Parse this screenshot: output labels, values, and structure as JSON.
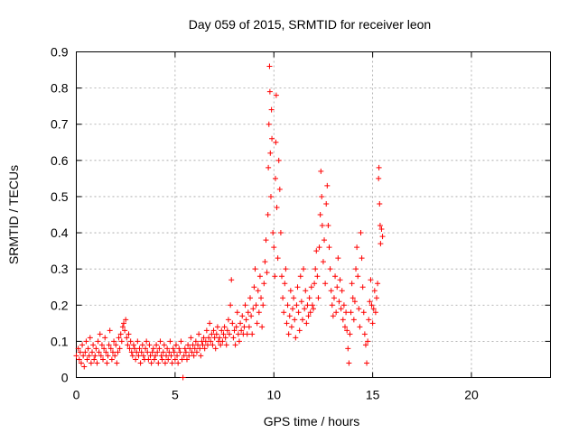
{
  "chart_data": {
    "type": "scatter",
    "title": "Day 059 of 2015, SRMTID for receiver leon",
    "xlabel": "GPS time / hours",
    "ylabel": "SRMTID / TECUs",
    "xlim": [
      0,
      24
    ],
    "ylim": [
      0,
      0.9
    ],
    "x_ticks": [
      0,
      5,
      10,
      15,
      20
    ],
    "x_tick_labels": [
      "0",
      "5",
      "10",
      "15",
      "20"
    ],
    "y_ticks": [
      0,
      0.1,
      0.2,
      0.3,
      0.4,
      0.5,
      0.6,
      0.7,
      0.8,
      0.9
    ],
    "y_tick_labels": [
      "0",
      "0.1",
      "0.2",
      "0.3",
      "0.4",
      "0.5",
      "0.6",
      "0.7",
      "0.8",
      "0.9"
    ],
    "grid": true,
    "marker": "+",
    "series": [
      {
        "name": "SRMTID",
        "color": "#ff0000",
        "points": [
          [
            0.0,
            0.06
          ],
          [
            0.1,
            0.08
          ],
          [
            0.15,
            0.05
          ],
          [
            0.2,
            0.07
          ],
          [
            0.25,
            0.04
          ],
          [
            0.3,
            0.09
          ],
          [
            0.35,
            0.06
          ],
          [
            0.4,
            0.03
          ],
          [
            0.45,
            0.07
          ],
          [
            0.5,
            0.1
          ],
          [
            0.55,
            0.05
          ],
          [
            0.6,
            0.08
          ],
          [
            0.65,
            0.06
          ],
          [
            0.7,
            0.11
          ],
          [
            0.75,
            0.04
          ],
          [
            0.8,
            0.07
          ],
          [
            0.85,
            0.09
          ],
          [
            0.9,
            0.05
          ],
          [
            0.95,
            0.06
          ],
          [
            1.0,
            0.08
          ],
          [
            1.05,
            0.04
          ],
          [
            1.1,
            0.1
          ],
          [
            1.15,
            0.07
          ],
          [
            1.2,
            0.12
          ],
          [
            1.25,
            0.06
          ],
          [
            1.3,
            0.09
          ],
          [
            1.35,
            0.05
          ],
          [
            1.4,
            0.08
          ],
          [
            1.45,
            0.11
          ],
          [
            1.5,
            0.07
          ],
          [
            1.55,
            0.04
          ],
          [
            1.6,
            0.06
          ],
          [
            1.65,
            0.09
          ],
          [
            1.7,
            0.13
          ],
          [
            1.75,
            0.08
          ],
          [
            1.8,
            0.05
          ],
          [
            1.85,
            0.07
          ],
          [
            1.9,
            0.1
          ],
          [
            1.95,
            0.06
          ],
          [
            2.0,
            0.09
          ],
          [
            2.05,
            0.04
          ],
          [
            2.1,
            0.07
          ],
          [
            2.15,
            0.11
          ],
          [
            2.2,
            0.08
          ],
          [
            2.25,
            0.12
          ],
          [
            2.3,
            0.1
          ],
          [
            2.35,
            0.14
          ],
          [
            2.4,
            0.15
          ],
          [
            2.45,
            0.13
          ],
          [
            2.5,
            0.16
          ],
          [
            2.55,
            0.11
          ],
          [
            2.6,
            0.09
          ],
          [
            2.65,
            0.12
          ],
          [
            2.7,
            0.08
          ],
          [
            2.75,
            0.1
          ],
          [
            2.8,
            0.07
          ],
          [
            2.85,
            0.06
          ],
          [
            2.9,
            0.09
          ],
          [
            2.95,
            0.08
          ],
          [
            3.0,
            0.05
          ],
          [
            3.05,
            0.07
          ],
          [
            3.1,
            0.1
          ],
          [
            3.15,
            0.06
          ],
          [
            3.2,
            0.08
          ],
          [
            3.25,
            0.04
          ],
          [
            3.3,
            0.07
          ],
          [
            3.35,
            0.09
          ],
          [
            3.4,
            0.06
          ],
          [
            3.45,
            0.05
          ],
          [
            3.5,
            0.08
          ],
          [
            3.55,
            0.1
          ],
          [
            3.6,
            0.07
          ],
          [
            3.65,
            0.05
          ],
          [
            3.7,
            0.09
          ],
          [
            3.75,
            0.06
          ],
          [
            3.8,
            0.04
          ],
          [
            3.85,
            0.07
          ],
          [
            3.9,
            0.08
          ],
          [
            3.95,
            0.05
          ],
          [
            4.0,
            0.06
          ],
          [
            4.05,
            0.09
          ],
          [
            4.1,
            0.07
          ],
          [
            4.15,
            0.04
          ],
          [
            4.2,
            0.08
          ],
          [
            4.25,
            0.1
          ],
          [
            4.3,
            0.06
          ],
          [
            4.35,
            0.05
          ],
          [
            4.4,
            0.07
          ],
          [
            4.45,
            0.09
          ],
          [
            4.5,
            0.04
          ],
          [
            4.55,
            0.06
          ],
          [
            4.6,
            0.08
          ],
          [
            4.65,
            0.05
          ],
          [
            4.7,
            0.07
          ],
          [
            4.75,
            0.1
          ],
          [
            4.8,
            0.06
          ],
          [
            4.85,
            0.04
          ],
          [
            4.9,
            0.08
          ],
          [
            4.95,
            0.07
          ],
          [
            5.0,
            0.05
          ],
          [
            5.05,
            0.09
          ],
          [
            5.1,
            0.06
          ],
          [
            5.15,
            0.04
          ],
          [
            5.2,
            0.08
          ],
          [
            5.25,
            0.07
          ],
          [
            5.3,
            0.1
          ],
          [
            5.35,
            0.05
          ],
          [
            5.4,
            0.0
          ],
          [
            5.45,
            0.06
          ],
          [
            5.5,
            0.08
          ],
          [
            5.55,
            0.07
          ],
          [
            5.6,
            0.05
          ],
          [
            5.65,
            0.09
          ],
          [
            5.7,
            0.06
          ],
          [
            5.75,
            0.08
          ],
          [
            5.8,
            0.11
          ],
          [
            5.85,
            0.07
          ],
          [
            5.9,
            0.09
          ],
          [
            5.95,
            0.06
          ],
          [
            6.0,
            0.08
          ],
          [
            6.05,
            0.1
          ],
          [
            6.1,
            0.07
          ],
          [
            6.15,
            0.09
          ],
          [
            6.2,
            0.12
          ],
          [
            6.25,
            0.08
          ],
          [
            6.3,
            0.06
          ],
          [
            6.35,
            0.1
          ],
          [
            6.4,
            0.09
          ],
          [
            6.45,
            0.11
          ],
          [
            6.5,
            0.08
          ],
          [
            6.55,
            0.1
          ],
          [
            6.6,
            0.13
          ],
          [
            6.65,
            0.09
          ],
          [
            6.7,
            0.11
          ],
          [
            6.75,
            0.15
          ],
          [
            6.8,
            0.1
          ],
          [
            6.85,
            0.12
          ],
          [
            6.9,
            0.09
          ],
          [
            6.95,
            0.13
          ],
          [
            7.0,
            0.11
          ],
          [
            7.05,
            0.08
          ],
          [
            7.1,
            0.12
          ],
          [
            7.15,
            0.14
          ],
          [
            7.2,
            0.1
          ],
          [
            7.25,
            0.11
          ],
          [
            7.3,
            0.09
          ],
          [
            7.35,
            0.13
          ],
          [
            7.4,
            0.1
          ],
          [
            7.45,
            0.12
          ],
          [
            7.5,
            0.14
          ],
          [
            7.55,
            0.11
          ],
          [
            7.6,
            0.09
          ],
          [
            7.65,
            0.13
          ],
          [
            7.7,
            0.16
          ],
          [
            7.75,
            0.12
          ],
          [
            7.8,
            0.2
          ],
          [
            7.85,
            0.27
          ],
          [
            7.9,
            0.15
          ],
          [
            7.95,
            0.11
          ],
          [
            8.0,
            0.13
          ],
          [
            8.05,
            0.09
          ],
          [
            8.1,
            0.14
          ],
          [
            8.15,
            0.18
          ],
          [
            8.2,
            0.12
          ],
          [
            8.25,
            0.1
          ],
          [
            8.3,
            0.15
          ],
          [
            8.35,
            0.13
          ],
          [
            8.4,
            0.17
          ],
          [
            8.45,
            0.12
          ],
          [
            8.5,
            0.14
          ],
          [
            8.55,
            0.2
          ],
          [
            8.6,
            0.16
          ],
          [
            8.65,
            0.12
          ],
          [
            8.7,
            0.18
          ],
          [
            8.75,
            0.14
          ],
          [
            8.8,
            0.22
          ],
          [
            8.85,
            0.17
          ],
          [
            8.9,
            0.12
          ],
          [
            8.95,
            0.19
          ],
          [
            9.0,
            0.25
          ],
          [
            9.05,
            0.3
          ],
          [
            9.1,
            0.2
          ],
          [
            9.15,
            0.15
          ],
          [
            9.2,
            0.24
          ],
          [
            9.25,
            0.18
          ],
          [
            9.3,
            0.28
          ],
          [
            9.35,
            0.22
          ],
          [
            9.4,
            0.14
          ],
          [
            9.45,
            0.2
          ],
          [
            9.5,
            0.26
          ],
          [
            9.55,
            0.32
          ],
          [
            9.6,
            0.38
          ],
          [
            9.65,
            0.29
          ],
          [
            9.7,
            0.45
          ],
          [
            9.72,
            0.58
          ],
          [
            9.75,
            0.7
          ],
          [
            9.78,
            0.86
          ],
          [
            9.8,
            0.79
          ],
          [
            9.82,
            0.62
          ],
          [
            9.85,
            0.5
          ],
          [
            9.88,
            0.74
          ],
          [
            9.9,
            0.66
          ],
          [
            9.95,
            0.4
          ],
          [
            10.0,
            0.36
          ],
          [
            10.05,
            0.28
          ],
          [
            10.08,
            0.55
          ],
          [
            10.1,
            0.65
          ],
          [
            10.12,
            0.78
          ],
          [
            10.15,
            0.47
          ],
          [
            10.2,
            0.33
          ],
          [
            10.25,
            0.6
          ],
          [
            10.3,
            0.52
          ],
          [
            10.35,
            0.4
          ],
          [
            10.4,
            0.28
          ],
          [
            10.45,
            0.22
          ],
          [
            10.5,
            0.18
          ],
          [
            10.55,
            0.26
          ],
          [
            10.6,
            0.3
          ],
          [
            10.65,
            0.15
          ],
          [
            10.7,
            0.2
          ],
          [
            10.75,
            0.12
          ],
          [
            10.8,
            0.17
          ],
          [
            10.85,
            0.24
          ],
          [
            10.9,
            0.14
          ],
          [
            10.95,
            0.19
          ],
          [
            11.0,
            0.22
          ],
          [
            11.05,
            0.16
          ],
          [
            11.1,
            0.11
          ],
          [
            11.15,
            0.2
          ],
          [
            11.2,
            0.25
          ],
          [
            11.25,
            0.18
          ],
          [
            11.3,
            0.13
          ],
          [
            11.35,
            0.28
          ],
          [
            11.4,
            0.21
          ],
          [
            11.45,
            0.16
          ],
          [
            11.5,
            0.3
          ],
          [
            11.55,
            0.19
          ],
          [
            11.6,
            0.24
          ],
          [
            11.65,
            0.15
          ],
          [
            11.7,
            0.2
          ],
          [
            11.75,
            0.17
          ],
          [
            11.8,
            0.22
          ],
          [
            11.85,
            0.18
          ],
          [
            11.9,
            0.25
          ],
          [
            11.95,
            0.2
          ],
          [
            12.0,
            0.19
          ],
          [
            12.05,
            0.26
          ],
          [
            12.1,
            0.3
          ],
          [
            12.15,
            0.35
          ],
          [
            12.2,
            0.28
          ],
          [
            12.25,
            0.22
          ],
          [
            12.3,
            0.36
          ],
          [
            12.35,
            0.45
          ],
          [
            12.38,
            0.57
          ],
          [
            12.42,
            0.5
          ],
          [
            12.45,
            0.42
          ],
          [
            12.5,
            0.32
          ],
          [
            12.55,
            0.38
          ],
          [
            12.6,
            0.26
          ],
          [
            12.65,
            0.48
          ],
          [
            12.7,
            0.53
          ],
          [
            12.75,
            0.42
          ],
          [
            12.8,
            0.36
          ],
          [
            12.85,
            0.3
          ],
          [
            12.9,
            0.24
          ],
          [
            12.95,
            0.2
          ],
          [
            13.0,
            0.17
          ],
          [
            13.05,
            0.22
          ],
          [
            13.1,
            0.28
          ],
          [
            13.15,
            0.18
          ],
          [
            13.2,
            0.25
          ],
          [
            13.25,
            0.33
          ],
          [
            13.3,
            0.21
          ],
          [
            13.35,
            0.27
          ],
          [
            13.4,
            0.19
          ],
          [
            13.45,
            0.24
          ],
          [
            13.5,
            0.16
          ],
          [
            13.55,
            0.2
          ],
          [
            13.6,
            0.14
          ],
          [
            13.65,
            0.18
          ],
          [
            13.7,
            0.13
          ],
          [
            13.75,
            0.08
          ],
          [
            13.8,
            0.04
          ],
          [
            13.85,
            0.12
          ],
          [
            13.9,
            0.18
          ],
          [
            13.95,
            0.26
          ],
          [
            14.0,
            0.22
          ],
          [
            14.05,
            0.16
          ],
          [
            14.1,
            0.21
          ],
          [
            14.15,
            0.3
          ],
          [
            14.2,
            0.36
          ],
          [
            14.25,
            0.28
          ],
          [
            14.3,
            0.19
          ],
          [
            14.35,
            0.14
          ],
          [
            14.4,
            0.4
          ],
          [
            14.45,
            0.33
          ],
          [
            14.5,
            0.25
          ],
          [
            14.55,
            0.18
          ],
          [
            14.6,
            0.12
          ],
          [
            14.65,
            0.09
          ],
          [
            14.7,
            0.04
          ],
          [
            14.75,
            0.1
          ],
          [
            14.8,
            0.16
          ],
          [
            14.85,
            0.21
          ],
          [
            14.9,
            0.27
          ],
          [
            14.95,
            0.2
          ],
          [
            15.0,
            0.15
          ],
          [
            15.05,
            0.19
          ],
          [
            15.1,
            0.24
          ],
          [
            15.15,
            0.18
          ],
          [
            15.2,
            0.22
          ],
          [
            15.25,
            0.26
          ],
          [
            15.3,
            0.55
          ],
          [
            15.32,
            0.58
          ],
          [
            15.35,
            0.48
          ],
          [
            15.38,
            0.42
          ],
          [
            15.4,
            0.37
          ],
          [
            15.45,
            0.41
          ],
          [
            15.5,
            0.39
          ]
        ]
      }
    ]
  }
}
